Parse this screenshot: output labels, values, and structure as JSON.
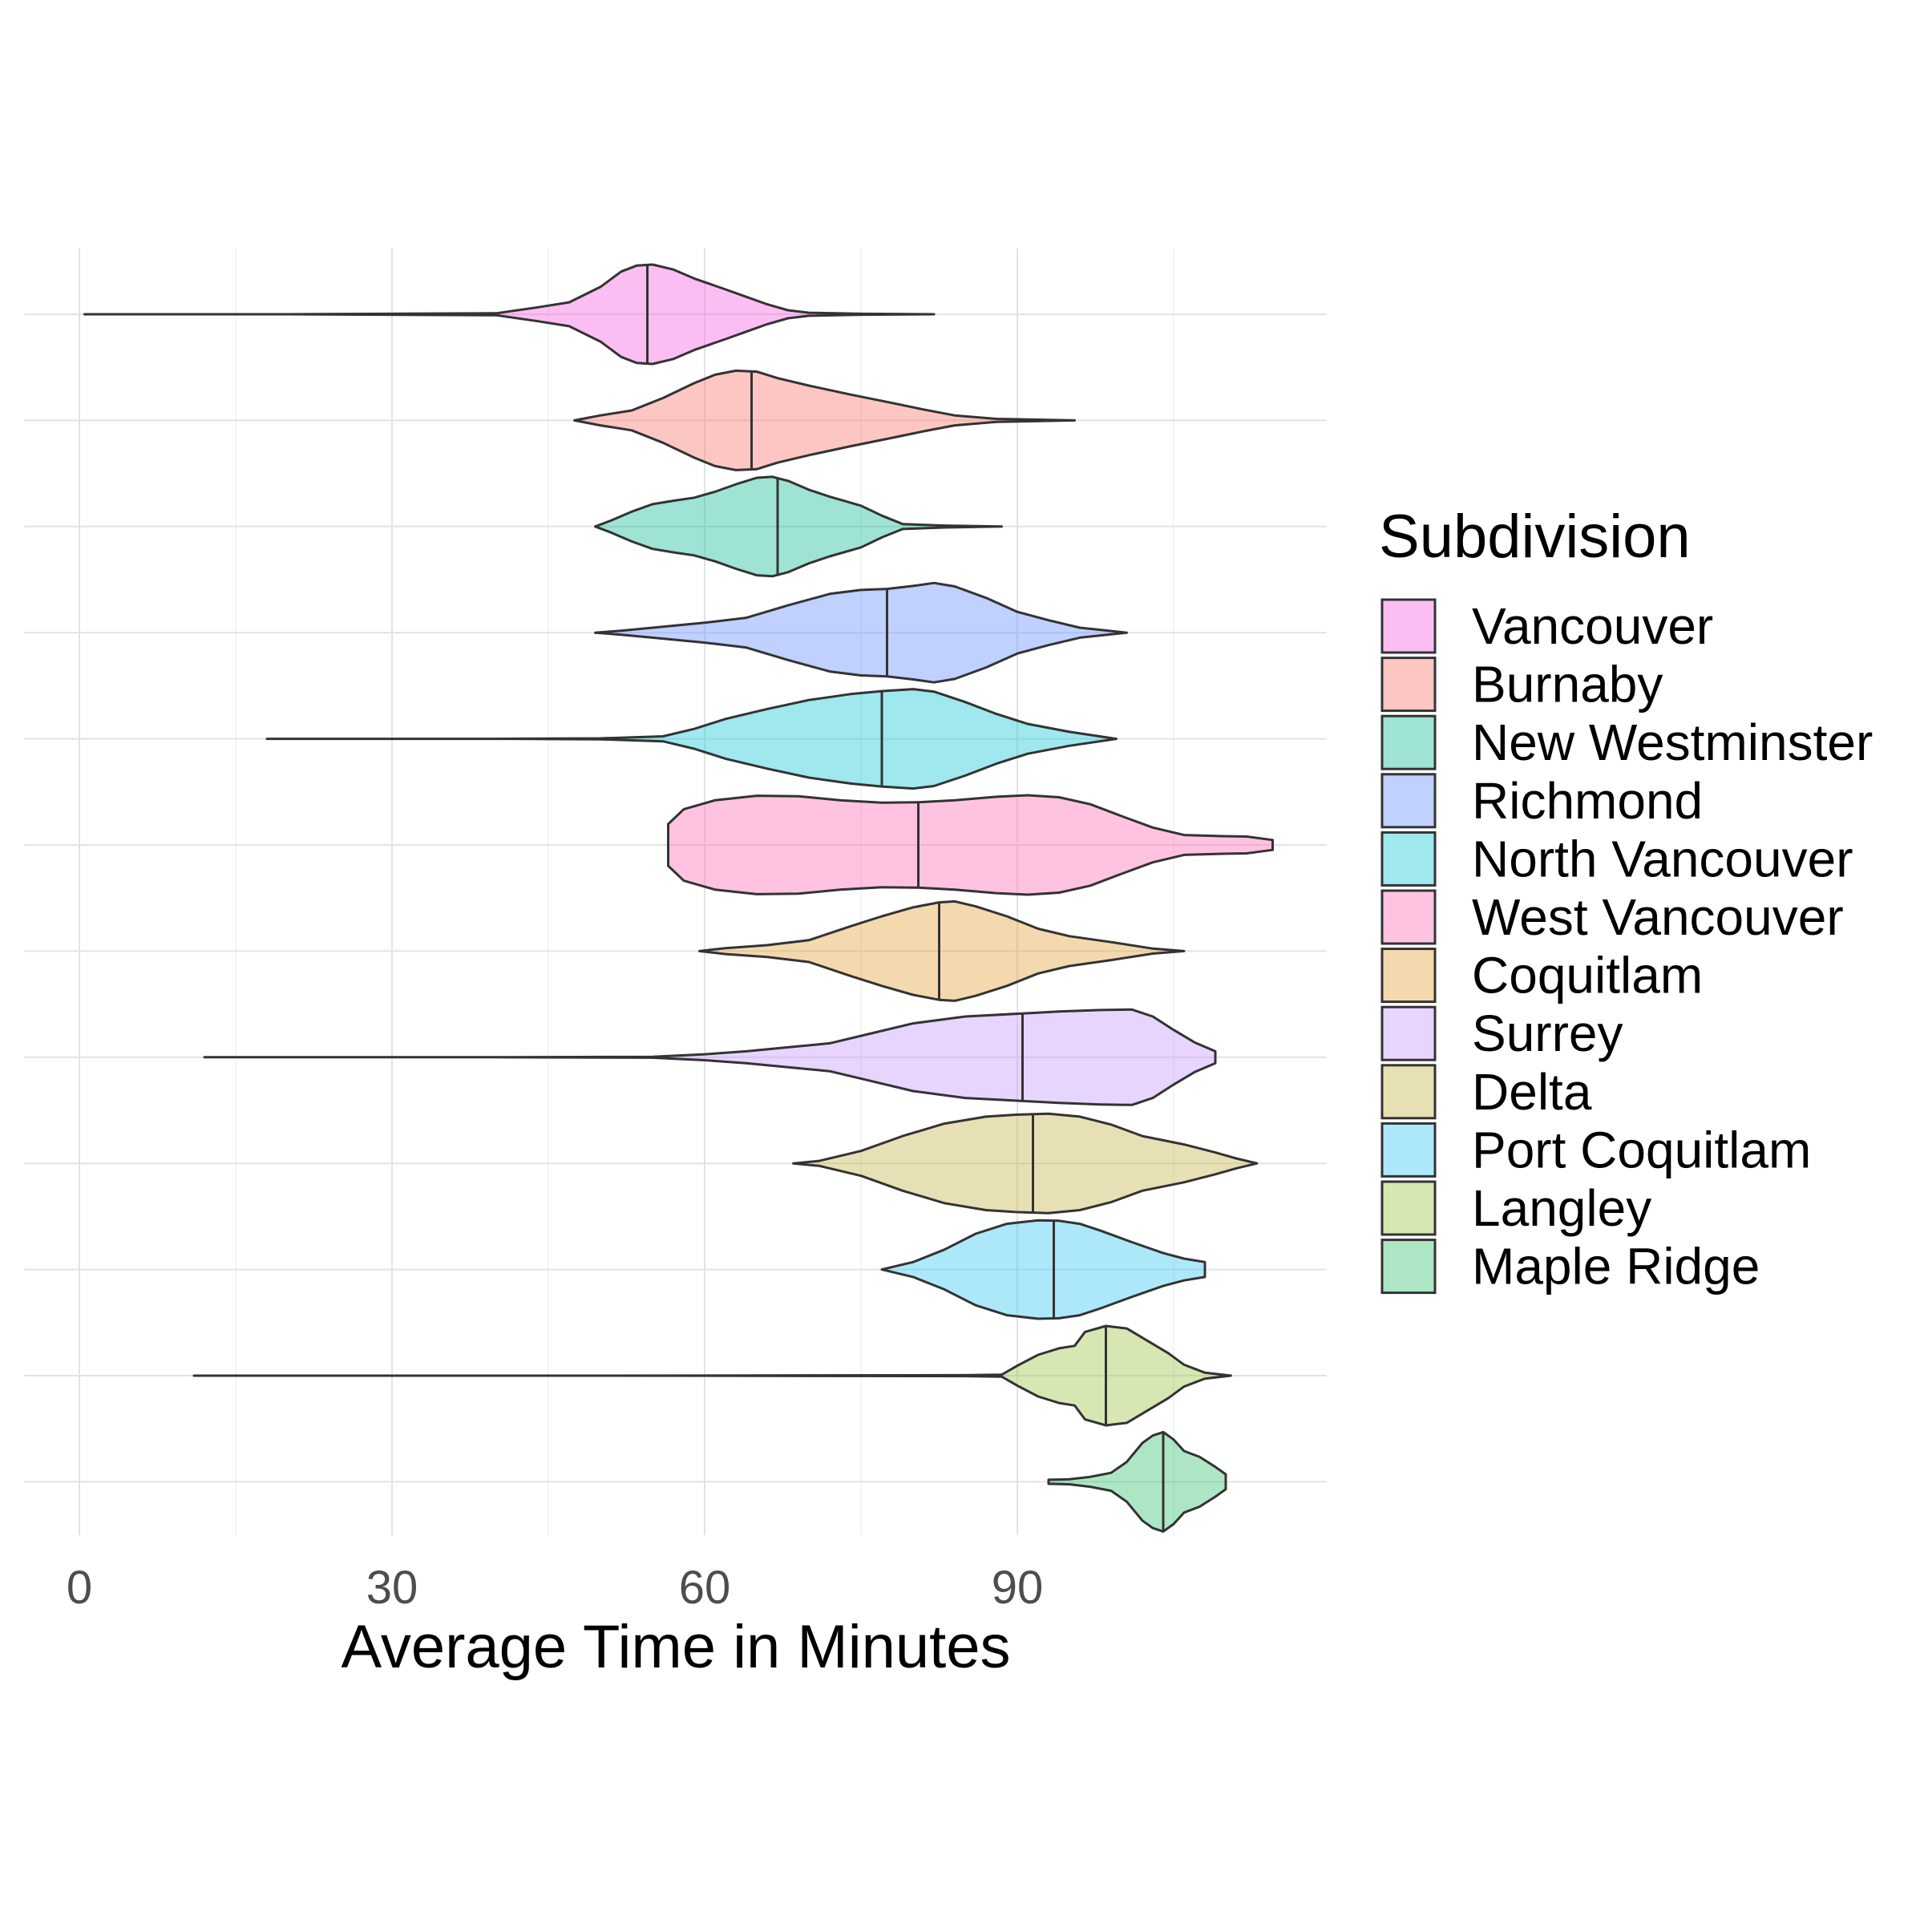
{
  "chart_data": {
    "type": "violin",
    "orientation": "horizontal",
    "xlabel": "Average Time in Minutes",
    "ylabel": "",
    "xlim": [
      -0.5,
      119.5
    ],
    "x_ticks": [
      0,
      30,
      60,
      90
    ],
    "y_tick_labels_shown": false,
    "grid": true,
    "legend": {
      "title": "Subdivision",
      "placement": "right"
    },
    "series": [
      {
        "name": "Vancouver",
        "color": "#F8766D",
        "median": 54.5,
        "min": 0.5,
        "max": 82,
        "profile": [
          [
            0.5,
            0
          ],
          [
            20,
            0
          ],
          [
            40,
            0.02
          ],
          [
            44,
            0.14
          ],
          [
            47,
            0.24
          ],
          [
            50,
            0.55
          ],
          [
            52,
            0.86
          ],
          [
            53.5,
            0.98
          ],
          [
            55,
            1
          ],
          [
            57,
            0.9
          ],
          [
            59,
            0.72
          ],
          [
            62,
            0.5
          ],
          [
            64,
            0.35
          ],
          [
            66,
            0.2
          ],
          [
            68,
            0.08
          ],
          [
            70,
            0.03
          ],
          [
            75,
            0.01
          ],
          [
            82,
            0
          ]
        ]
      },
      {
        "name": "Burnaby",
        "color": "#DB8E00",
        "median": 64.5,
        "min": 47.5,
        "max": 95.5,
        "profile": [
          [
            47.5,
            0
          ],
          [
            50,
            0.1
          ],
          [
            53,
            0.2
          ],
          [
            56,
            0.45
          ],
          [
            59,
            0.75
          ],
          [
            61,
            0.92
          ],
          [
            63,
            1
          ],
          [
            65,
            0.98
          ],
          [
            67,
            0.85
          ],
          [
            70,
            0.7
          ],
          [
            74,
            0.52
          ],
          [
            78,
            0.35
          ],
          [
            81,
            0.22
          ],
          [
            84,
            0.1
          ],
          [
            88,
            0.03
          ],
          [
            95.5,
            0
          ]
        ]
      },
      {
        "name": "New Westminster",
        "color": "#AEA200",
        "median": 67,
        "min": 49.5,
        "max": 88.5,
        "profile": [
          [
            49.5,
            0
          ],
          [
            51,
            0.12
          ],
          [
            53,
            0.3
          ],
          [
            55,
            0.45
          ],
          [
            57,
            0.52
          ],
          [
            59,
            0.58
          ],
          [
            61,
            0.7
          ],
          [
            63,
            0.85
          ],
          [
            65,
            0.98
          ],
          [
            66.5,
            1
          ],
          [
            68,
            0.92
          ],
          [
            70,
            0.74
          ],
          [
            72,
            0.6
          ],
          [
            75,
            0.42
          ],
          [
            77,
            0.22
          ],
          [
            79,
            0.05
          ],
          [
            83,
            0.02
          ],
          [
            88.5,
            0
          ]
        ]
      },
      {
        "name": "Richmond",
        "color": "#64B200",
        "median": 77.5,
        "min": 49.5,
        "max": 100.5,
        "profile": [
          [
            49.5,
            0
          ],
          [
            52,
            0.04
          ],
          [
            56,
            0.12
          ],
          [
            60,
            0.2
          ],
          [
            64,
            0.3
          ],
          [
            68,
            0.55
          ],
          [
            72,
            0.78
          ],
          [
            75,
            0.86
          ],
          [
            77.5,
            0.88
          ],
          [
            80,
            0.94
          ],
          [
            82,
            1
          ],
          [
            84,
            0.93
          ],
          [
            87,
            0.7
          ],
          [
            90,
            0.42
          ],
          [
            93,
            0.25
          ],
          [
            96,
            0.1
          ],
          [
            100.5,
            0
          ]
        ]
      },
      {
        "name": "North Vancouver",
        "color": "#00BD5C",
        "median": 77,
        "min": 18,
        "max": 99.5,
        "profile": [
          [
            18,
            0
          ],
          [
            40,
            0
          ],
          [
            50,
            0.01
          ],
          [
            56,
            0.05
          ],
          [
            59,
            0.2
          ],
          [
            62,
            0.4
          ],
          [
            66,
            0.6
          ],
          [
            70,
            0.78
          ],
          [
            74,
            0.9
          ],
          [
            77,
            0.96
          ],
          [
            80,
            1
          ],
          [
            82,
            0.95
          ],
          [
            85,
            0.74
          ],
          [
            88,
            0.5
          ],
          [
            91,
            0.3
          ],
          [
            95,
            0.14
          ],
          [
            99.5,
            0
          ]
        ]
      },
      {
        "name": "West Vancouver",
        "color": "#00C1A7",
        "median": 80.5,
        "min": 56.5,
        "max": 114.5,
        "profile": [
          [
            56.5,
            0.42
          ],
          [
            58,
            0.72
          ],
          [
            61,
            0.9
          ],
          [
            65,
            0.99
          ],
          [
            69,
            0.98
          ],
          [
            73,
            0.9
          ],
          [
            77,
            0.85
          ],
          [
            80.5,
            0.86
          ],
          [
            84,
            0.9
          ],
          [
            88,
            0.97
          ],
          [
            91,
            1
          ],
          [
            94,
            0.96
          ],
          [
            97,
            0.82
          ],
          [
            100,
            0.58
          ],
          [
            103,
            0.35
          ],
          [
            106,
            0.2
          ],
          [
            109,
            0.18
          ],
          [
            112,
            0.17
          ],
          [
            114.5,
            0.1
          ]
        ]
      },
      {
        "name": "Coquitlam",
        "color": "#00BADE",
        "median": 82.5,
        "min": 59.5,
        "max": 106,
        "profile": [
          [
            59.5,
            0
          ],
          [
            62,
            0.06
          ],
          [
            66,
            0.12
          ],
          [
            70,
            0.22
          ],
          [
            74,
            0.5
          ],
          [
            77,
            0.7
          ],
          [
            80,
            0.88
          ],
          [
            82.5,
            0.98
          ],
          [
            84,
            1
          ],
          [
            86,
            0.9
          ],
          [
            89,
            0.7
          ],
          [
            92,
            0.45
          ],
          [
            95,
            0.3
          ],
          [
            99,
            0.18
          ],
          [
            103,
            0.05
          ],
          [
            106,
            0
          ]
        ]
      },
      {
        "name": "Surrey",
        "color": "#00A6FF",
        "median": 90.5,
        "min": 12,
        "max": 109,
        "profile": [
          [
            12,
            0
          ],
          [
            40,
            0
          ],
          [
            55,
            0.01
          ],
          [
            60,
            0.06
          ],
          [
            64,
            0.12
          ],
          [
            68,
            0.2
          ],
          [
            72,
            0.28
          ],
          [
            76,
            0.48
          ],
          [
            80,
            0.68
          ],
          [
            85,
            0.82
          ],
          [
            90.5,
            0.88
          ],
          [
            94,
            0.92
          ],
          [
            98,
            0.95
          ],
          [
            101,
            0.96
          ],
          [
            103,
            0.82
          ],
          [
            105,
            0.55
          ],
          [
            107,
            0.3
          ],
          [
            109,
            0.12
          ]
        ]
      },
      {
        "name": "Delta",
        "color": "#B385FF",
        "median": 91.5,
        "min": 68.5,
        "max": 113,
        "profile": [
          [
            68.5,
            0
          ],
          [
            71,
            0.05
          ],
          [
            75,
            0.25
          ],
          [
            79,
            0.55
          ],
          [
            83,
            0.8
          ],
          [
            87,
            0.94
          ],
          [
            90,
            0.98
          ],
          [
            93,
            1
          ],
          [
            96,
            0.94
          ],
          [
            99,
            0.78
          ],
          [
            102,
            0.55
          ],
          [
            106,
            0.38
          ],
          [
            109,
            0.22
          ],
          [
            111,
            0.1
          ],
          [
            113,
            0
          ]
        ]
      },
      {
        "name": "Port Coquitlam",
        "color": "#EF67EB",
        "median": 93.5,
        "min": 77,
        "max": 108,
        "profile": [
          [
            77,
            0
          ],
          [
            80,
            0.15
          ],
          [
            83,
            0.4
          ],
          [
            86,
            0.72
          ],
          [
            89,
            0.92
          ],
          [
            92,
            0.99
          ],
          [
            94,
            0.98
          ],
          [
            96,
            0.92
          ],
          [
            98,
            0.78
          ],
          [
            101,
            0.55
          ],
          [
            104,
            0.33
          ],
          [
            106,
            0.22
          ],
          [
            108,
            0.15
          ]
        ]
      },
      {
        "name": "Langley",
        "color": "#FF63B6",
        "median": 98.5,
        "min": 11,
        "max": 110.5,
        "profile": [
          [
            11,
            0
          ],
          [
            50,
            0
          ],
          [
            85,
            0.01
          ],
          [
            88.5,
            0.02
          ],
          [
            90,
            0.2
          ],
          [
            92,
            0.42
          ],
          [
            94,
            0.55
          ],
          [
            95.5,
            0.6
          ],
          [
            96.5,
            0.88
          ],
          [
            98.5,
            1
          ],
          [
            100.5,
            0.95
          ],
          [
            102.5,
            0.7
          ],
          [
            104.5,
            0.45
          ],
          [
            106,
            0.22
          ],
          [
            108,
            0.06
          ],
          [
            110.5,
            0
          ]
        ]
      },
      {
        "name": "Maple Ridge",
        "color": "#F8766D",
        "median": 104,
        "min": 93,
        "max": 110,
        "profile": [
          [
            93,
            0.04
          ],
          [
            95,
            0.05
          ],
          [
            97,
            0.1
          ],
          [
            99,
            0.18
          ],
          [
            100.5,
            0.4
          ],
          [
            102,
            0.78
          ],
          [
            103,
            0.93
          ],
          [
            104,
            1
          ],
          [
            105,
            0.85
          ],
          [
            106,
            0.62
          ],
          [
            107.5,
            0.5
          ],
          [
            109,
            0.3
          ],
          [
            110,
            0.15
          ]
        ]
      }
    ]
  }
}
